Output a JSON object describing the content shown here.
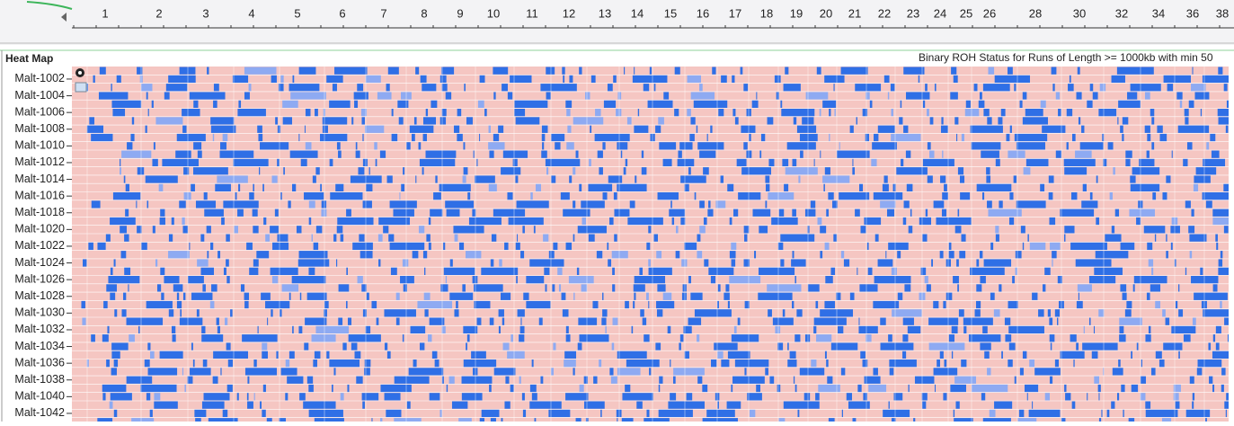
{
  "ruler": {
    "labels": [
      "1",
      "2",
      "3",
      "4",
      "5",
      "6",
      "7",
      "8",
      "9",
      "10",
      "11",
      "12",
      "13",
      "14",
      "15",
      "16",
      "17",
      "18",
      "19",
      "20",
      "21",
      "22",
      "23",
      "24",
      "25",
      "26",
      "28",
      "30",
      "32",
      "34",
      "36",
      "38"
    ]
  },
  "panel": {
    "title": "Heat Map",
    "subtitle": "Binary ROH Status for Runs of Length >= 1000kb with min 50",
    "row_labels": [
      "Malt-1002",
      "Malt-1004",
      "Malt-1006",
      "Malt-1008",
      "Malt-1010",
      "Malt-1012",
      "Malt-1014",
      "Malt-1016",
      "Malt-1018",
      "Malt-1020",
      "Malt-1022",
      "Malt-1024",
      "Malt-1026",
      "Malt-1028",
      "Malt-1030",
      "Malt-1032",
      "Malt-1034",
      "Malt-1036",
      "Malt-1038",
      "Malt-1040",
      "Malt-1042"
    ]
  }
}
